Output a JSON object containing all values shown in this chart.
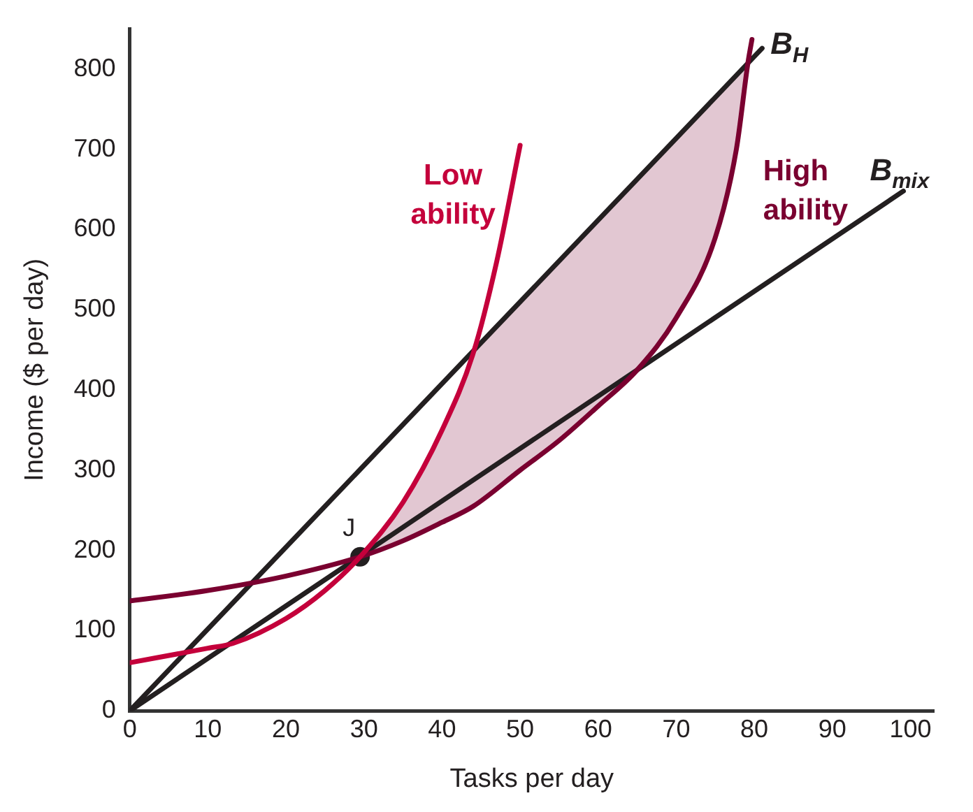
{
  "chart_data": {
    "type": "line",
    "xlabel": "Tasks per day",
    "ylabel": "Income ($ per day)",
    "xlim": [
      0,
      103
    ],
    "ylim": [
      0,
      850
    ],
    "xticks": [
      0,
      10,
      20,
      30,
      40,
      50,
      60,
      70,
      80,
      90,
      100
    ],
    "yticks": [
      0,
      100,
      200,
      300,
      400,
      500,
      600,
      700,
      800
    ],
    "grid": false,
    "legend": false,
    "marker": "none",
    "line_style": "solid",
    "series": [
      {
        "name": "Low ability",
        "color": "#c4003b",
        "x": [
          0,
          10,
          13.2,
          20,
          25,
          29.5,
          35,
          40,
          44,
          47,
          50
        ],
        "values": [
          60,
          78,
          84,
          115,
          150,
          192,
          260,
          350,
          446,
          560,
          705
        ]
      },
      {
        "name": "High ability",
        "color": "#7a0030",
        "x": [
          0,
          10,
          20,
          29.5,
          35,
          40,
          44,
          50,
          55,
          60,
          65,
          70,
          75,
          77.7,
          79.2,
          79.7
        ],
        "values": [
          137,
          150,
          168,
          192,
          212,
          235,
          255,
          300,
          337,
          380,
          425,
          490,
          590,
          700,
          809,
          837
        ],
        "lower": [
          null,
          null,
          null,
          192,
          212,
          235,
          255,
          300,
          337,
          380,
          425,
          490,
          590,
          700,
          809,
          null
        ],
        "upper": [
          null,
          null,
          null,
          192,
          260,
          350,
          446,
          510,
          561,
          612,
          663,
          714,
          765,
          793,
          809,
          null
        ]
      },
      {
        "name": "B$_{H}$",
        "color": "#231f20",
        "x": [
          0,
          81
        ],
        "values": [
          0,
          826
        ]
      },
      {
        "name": "B$_{mix}$",
        "color": "#231f20",
        "x": [
          0,
          99.1
        ],
        "values": [
          0,
          648
        ]
      },
      {
        "type": "scatter",
        "marker": "circle",
        "color": "#231f20",
        "x": [
          29.5
        ],
        "values": [
          192
        ]
      }
    ],
    "annotations": [
      {
        "text": "J",
        "x": 29.5,
        "y": 192
      }
    ]
  }
}
